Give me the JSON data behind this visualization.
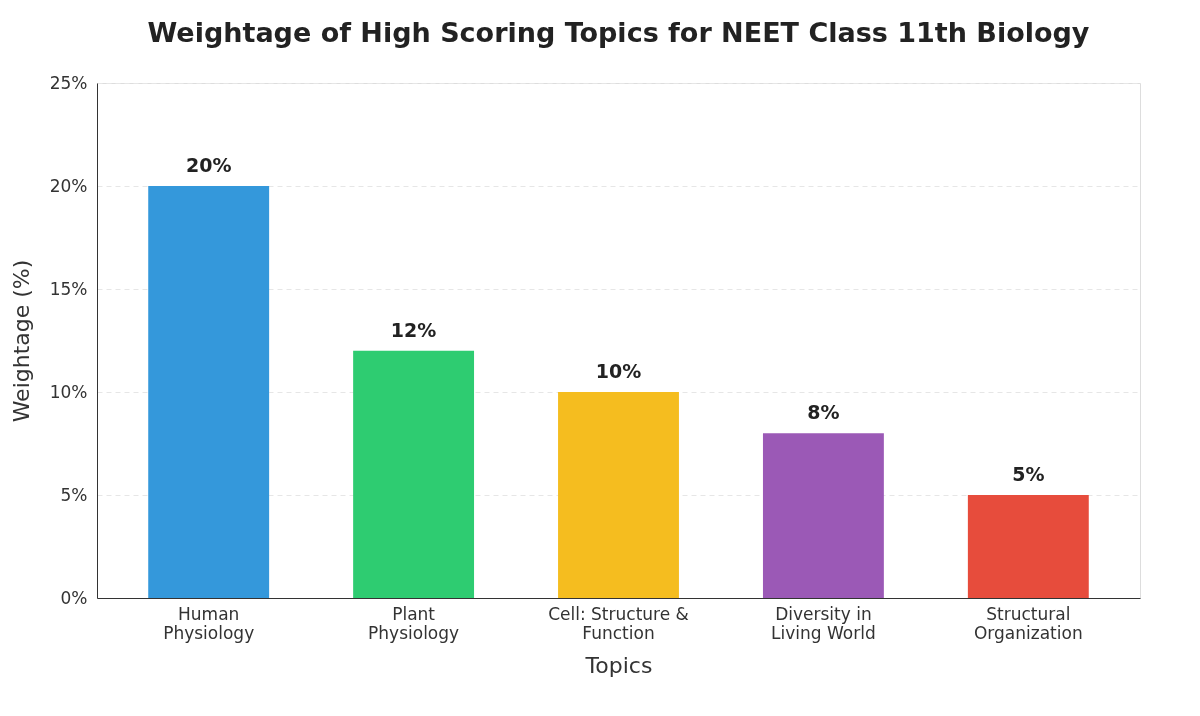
{
  "chart_data": {
    "type": "bar",
    "title": "Weightage of High Scoring Topics for NEET Class 11th Biology",
    "xlabel": "Topics",
    "ylabel": "Weightage (%)",
    "categories": [
      "Human\nPhysiology",
      "Plant\nPhysiology",
      "Cell: Structure &\nFunction",
      "Diversity in\nLiving World",
      "Structural\nOrganization"
    ],
    "values": [
      20,
      12,
      10,
      8,
      5
    ],
    "colors": [
      "#3498db",
      "#2ecc71",
      "#f5bd1f",
      "#9b59b6",
      "#e74c3c"
    ],
    "value_labels": [
      "20%",
      "12%",
      "10%",
      "8%",
      "5%"
    ],
    "ylim": [
      0,
      25
    ],
    "yticks": [
      {
        "value": 0,
        "label": "0%"
      },
      {
        "value": 5,
        "label": "5%"
      },
      {
        "value": 10,
        "label": "10%"
      },
      {
        "value": 15,
        "label": "15%"
      },
      {
        "value": 20,
        "label": "20%"
      },
      {
        "value": 25,
        "label": "25%"
      }
    ],
    "grid": "y",
    "legend": false
  }
}
